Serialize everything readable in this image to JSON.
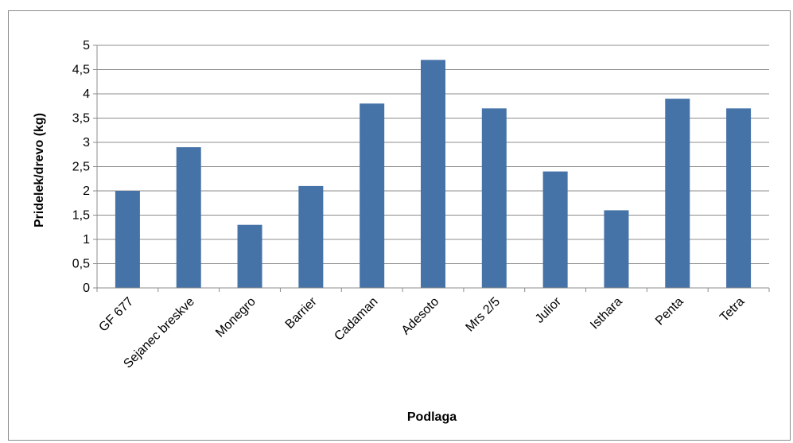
{
  "chart_data": {
    "type": "bar",
    "title": "",
    "xlabel": "Podlaga",
    "ylabel": "Pridelek/drevo (kg)",
    "categories": [
      "GF 677",
      "Sejanec breskve",
      "Monegro",
      "Barrier",
      "Cadaman",
      "Adesoto",
      "Mrs 2/5",
      "Julior",
      "Isthara",
      "Penta",
      "Tetra"
    ],
    "values": [
      2.0,
      2.9,
      1.3,
      2.1,
      3.8,
      4.7,
      3.7,
      2.4,
      1.6,
      3.9,
      3.7
    ],
    "ylim": [
      0,
      5
    ],
    "yticks": [
      "0",
      "0,5",
      "1",
      "1,5",
      "2",
      "2,5",
      "3",
      "3,5",
      "4",
      "4,5",
      "5"
    ],
    "grid": true,
    "legend": "none",
    "bar_color": "#4572A7"
  }
}
